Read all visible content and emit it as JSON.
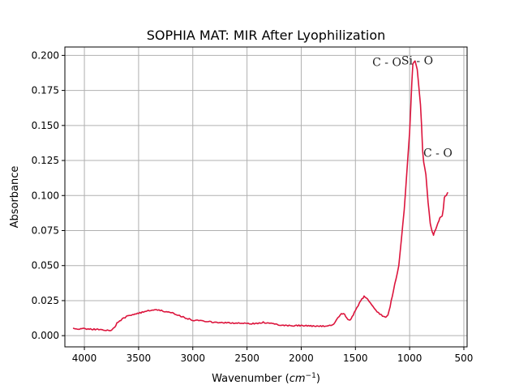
{
  "chart_data": {
    "type": "line",
    "title": "SOPHIA MAT: MIR After Lyophilization",
    "xlabel": "Wavenumber",
    "xlabel_unit_base": "cm",
    "xlabel_unit_exp": "−1",
    "ylabel": "Absorbance",
    "xlim": [
      4180,
      470
    ],
    "ylim": [
      -0.008,
      0.206
    ],
    "x_inverted": true,
    "grid": true,
    "x_ticks": [
      4000,
      3500,
      3000,
      2500,
      2000,
      1500,
      1000,
      500
    ],
    "y_ticks": [
      0.0,
      0.025,
      0.05,
      0.075,
      0.1,
      0.125,
      0.15,
      0.175,
      0.2
    ],
    "series": [
      {
        "color": "#dc143c",
        "x": [
          4100,
          4000,
          3900,
          3800,
          3750,
          3720,
          3700,
          3650,
          3600,
          3500,
          3400,
          3350,
          3300,
          3200,
          3100,
          3000,
          2900,
          2800,
          2700,
          2600,
          2500,
          2400,
          2350,
          2300,
          2200,
          2100,
          2000,
          1900,
          1800,
          1750,
          1700,
          1650,
          1630,
          1600,
          1560,
          1540,
          1500,
          1450,
          1420,
          1400,
          1350,
          1300,
          1250,
          1220,
          1200,
          1180,
          1150,
          1100,
          1050,
          1000,
          980,
          970,
          950,
          930,
          900,
          890,
          880,
          870,
          850,
          830,
          810,
          790,
          780,
          770,
          750,
          730,
          720,
          700,
          690,
          680,
          670,
          660,
          650
        ],
        "y": [
          0.005,
          0.005,
          0.0045,
          0.004,
          0.0035,
          0.006,
          0.009,
          0.012,
          0.014,
          0.016,
          0.018,
          0.0185,
          0.018,
          0.0165,
          0.0135,
          0.011,
          0.0105,
          0.0095,
          0.0092,
          0.009,
          0.0088,
          0.0085,
          0.0095,
          0.009,
          0.0075,
          0.0072,
          0.0072,
          0.0068,
          0.0068,
          0.0072,
          0.008,
          0.014,
          0.016,
          0.015,
          0.011,
          0.012,
          0.018,
          0.025,
          0.028,
          0.027,
          0.022,
          0.017,
          0.014,
          0.0135,
          0.015,
          0.021,
          0.032,
          0.05,
          0.09,
          0.145,
          0.18,
          0.194,
          0.196,
          0.19,
          0.165,
          0.15,
          0.132,
          0.124,
          0.115,
          0.095,
          0.08,
          0.074,
          0.072,
          0.074,
          0.078,
          0.082,
          0.084,
          0.085,
          0.09,
          0.098,
          0.1,
          0.1,
          0.102
        ]
      }
    ],
    "annotations": [
      {
        "text": "C - O",
        "x": 1210,
        "y": 0.1925
      },
      {
        "text": "Si - O",
        "x": 930,
        "y": 0.1935
      },
      {
        "text": "C - O",
        "x": 740,
        "y": 0.1275
      }
    ]
  }
}
